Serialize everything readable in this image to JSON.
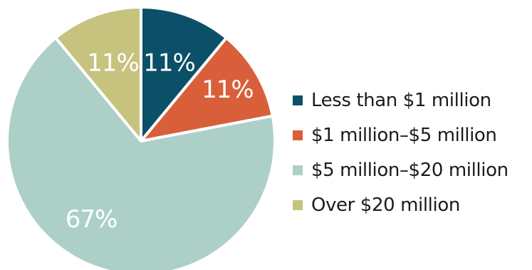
{
  "chart_data": {
    "type": "pie",
    "title": "",
    "slices": [
      {
        "label": "Less than $1 million",
        "value": 11,
        "display": "11%",
        "color": "#0b5068"
      },
      {
        "label": "$1 million–$5 million",
        "value": 11,
        "display": "11%",
        "color": "#d95f3b"
      },
      {
        "label": "$5 million–$20 million",
        "value": 67,
        "display": "67%",
        "color": "#acd0c8"
      },
      {
        "label": "Over $20 million",
        "value": 11,
        "display": "11%",
        "color": "#c7c37f"
      }
    ],
    "start_angle": "12 o'clock",
    "direction": "clockwise",
    "legend_position": "right"
  }
}
